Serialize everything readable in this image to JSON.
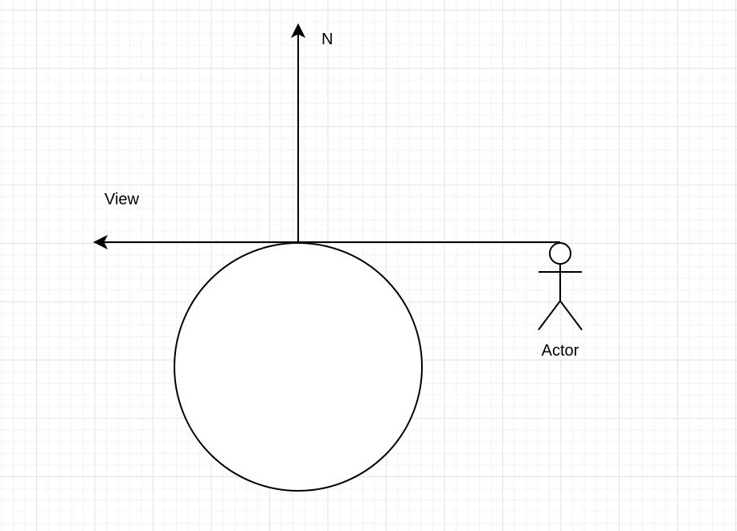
{
  "diagram": {
    "labels": {
      "north": "N",
      "view": "View",
      "actor": "Actor"
    },
    "colors": {
      "stroke": "#000000",
      "grid_major": "#e2e2e2",
      "grid_minor": "#f3f3f3",
      "background": "#ffffff"
    }
  }
}
